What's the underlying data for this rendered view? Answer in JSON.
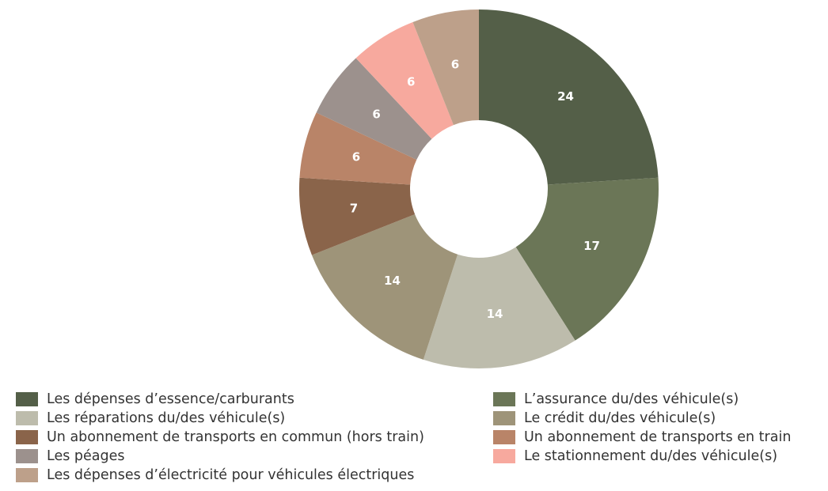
{
  "chart_data": {
    "type": "pie",
    "categories": [
      "Les dépenses d’essence/carburants",
      "L’assurance du/des véhicule(s)",
      "Les réparations du/des véhicule(s)",
      "Le crédit du/des véhicule(s)",
      "Un abonnement de transports en commun (hors train)",
      "Un abonnement de transports en train",
      "Les péages",
      "Le stationnement du/des véhicule(s)",
      "Les dépenses d’électricité pour véhicules électriques"
    ],
    "values": [
      24,
      17,
      14,
      14,
      7,
      6,
      6,
      6,
      6
    ],
    "colors": [
      "#545f48",
      "#6b7657",
      "#bdbcac",
      "#9e9479",
      "#8a644a",
      "#b98468",
      "#9c918d",
      "#f7a99e",
      "#bda08a"
    ],
    "donut": true
  }
}
